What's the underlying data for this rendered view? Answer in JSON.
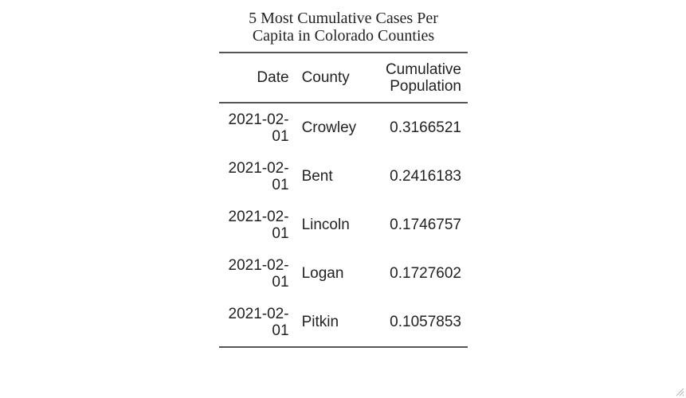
{
  "title": {
    "line1": "5 Most Cumulative Cases Per",
    "line2": "Capita in Colorado Counties"
  },
  "table": {
    "headers": {
      "date": "Date",
      "county": "County",
      "value_line1": "Cumulative",
      "value_line2": "Population"
    },
    "rows": [
      {
        "date_part1": "2021-02-",
        "date_part2": "01",
        "county": "Crowley",
        "value": "0.3166521"
      },
      {
        "date_part1": "2021-02-",
        "date_part2": "01",
        "county": "Bent",
        "value": "0.2416183"
      },
      {
        "date_part1": "2021-02-",
        "date_part2": "01",
        "county": "Lincoln",
        "value": "0.1746757"
      },
      {
        "date_part1": "2021-02-",
        "date_part2": "01",
        "county": "Logan",
        "value": "0.1727602"
      },
      {
        "date_part1": "2021-02-",
        "date_part2": "01",
        "county": "Pitkin",
        "value": "0.1057853"
      }
    ]
  },
  "icons": {
    "resize_grip": "resize-grip-icon"
  }
}
